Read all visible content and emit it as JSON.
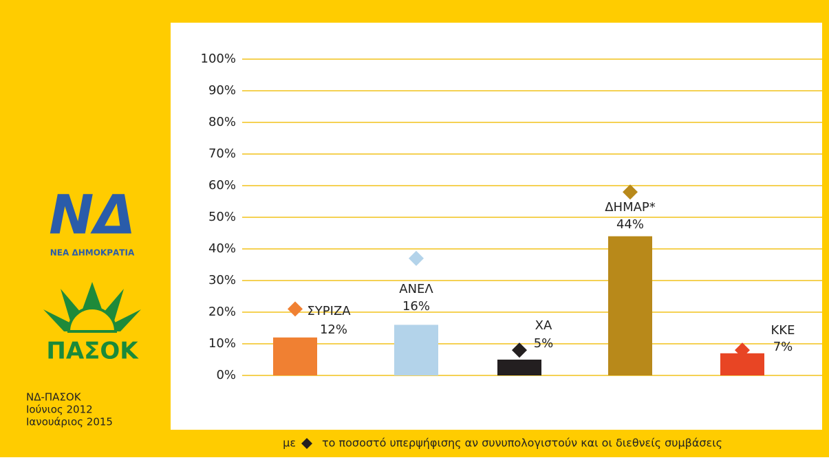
{
  "chart_data": {
    "type": "bar",
    "categories": [
      "ΣΥΡΙΖΑ",
      "ΑΝΕΛ",
      "ΧΑ",
      "ΔΗΜΑΡ*",
      "ΚΚΕ"
    ],
    "values": [
      12,
      16,
      5,
      44,
      7
    ],
    "value_labels": [
      "12%",
      "16%",
      "5%",
      "44%",
      "7%"
    ],
    "colors": [
      "#f08032",
      "#b3d3ea",
      "#231f20",
      "#b8891a",
      "#e84524"
    ],
    "marker_values": [
      21,
      37,
      8,
      58,
      8
    ],
    "ylim": [
      0,
      100
    ],
    "yticks": [
      {
        "value": 0,
        "label": "0%"
      },
      {
        "value": 10,
        "label": "10%"
      },
      {
        "value": 20,
        "label": "20%"
      },
      {
        "value": 30,
        "label": "30%"
      },
      {
        "value": 40,
        "label": "40%"
      },
      {
        "value": 50,
        "label": "50%"
      },
      {
        "value": 60,
        "label": "60%"
      },
      {
        "value": 70,
        "label": "70%"
      },
      {
        "value": 80,
        "label": "80%"
      },
      {
        "value": 90,
        "label": "90%"
      },
      {
        "value": 100,
        "label": "100%"
      }
    ],
    "grid": true,
    "footnote": {
      "before": "με",
      "after": "το ποσοστό υπερψήφισης αν συνυπολογιστούν και οι διεθνείς συμβάσεις"
    }
  },
  "sidebar": {
    "logo_nd": "ΝΔ",
    "logo_nd_text": "ΝΕΑ ΔΗΜΟΚΡΑΤΙΑ",
    "logo_pasok": "ΠΑΣΟΚ",
    "caption": [
      "ΝΔ-ΠΑΣΟΚ",
      "Ιούνιος 2012",
      "Ιανουάριος 2015"
    ]
  }
}
